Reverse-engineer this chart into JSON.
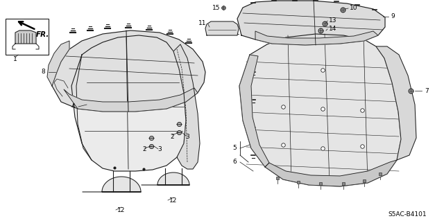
{
  "background_color": "#ffffff",
  "diagram_code": "S5AC-B4101",
  "line_color": "#1a1a1a",
  "fill_color": "#e8e8e8",
  "fill_color2": "#d0d0d0",
  "text_color": "#000000",
  "fontsize_label": 6.5,
  "fontsize_code": 6.5
}
